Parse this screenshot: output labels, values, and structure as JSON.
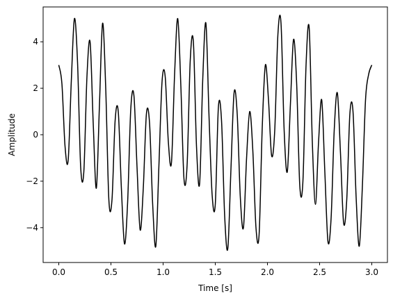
{
  "chart_data": {
    "type": "line",
    "title": "",
    "xlabel": "Time [s]",
    "ylabel": "Amplitude",
    "xlim": [
      -0.15,
      3.15
    ],
    "ylim": [
      -5.5,
      5.5
    ],
    "xticks": [
      {
        "value": 0.0,
        "label": "0.0"
      },
      {
        "value": 0.5,
        "label": "0.5"
      },
      {
        "value": 1.0,
        "label": "1.0"
      },
      {
        "value": 1.5,
        "label": "1.5"
      },
      {
        "value": 2.0,
        "label": "2.0"
      },
      {
        "value": 2.5,
        "label": "2.5"
      },
      {
        "value": 3.0,
        "label": "3.0"
      }
    ],
    "yticks": [
      {
        "value": -4,
        "label": "−4"
      },
      {
        "value": -2,
        "label": "−2"
      },
      {
        "value": 0,
        "label": "0"
      },
      {
        "value": 2,
        "label": "2"
      },
      {
        "value": 4,
        "label": "4"
      }
    ],
    "grid": false,
    "line_color": "#000000",
    "series": [
      {
        "x": [
          0.0,
          0.03,
          0.06,
          0.09,
          0.12,
          0.15,
          0.18,
          0.21,
          0.24,
          0.27,
          0.3,
          0.33,
          0.36,
          0.39,
          0.42,
          0.45,
          0.48,
          0.51,
          0.54,
          0.57,
          0.6,
          0.63,
          0.66,
          0.69,
          0.72,
          0.75,
          0.78,
          0.81,
          0.84,
          0.87,
          0.9,
          0.93,
          0.96,
          0.99,
          1.02,
          1.05,
          1.08,
          1.11,
          1.14,
          1.17,
          1.2,
          1.23,
          1.26,
          1.29,
          1.32,
          1.35,
          1.38,
          1.41,
          1.44,
          1.47,
          1.5,
          1.53,
          1.56,
          1.59,
          1.62,
          1.65,
          1.68,
          1.71,
          1.74,
          1.77,
          1.8,
          1.83,
          1.86,
          1.89,
          1.92,
          1.95,
          1.98,
          2.01,
          2.04,
          2.07,
          2.1,
          2.13,
          2.16,
          2.19,
          2.22,
          2.25,
          2.28,
          2.31,
          2.34,
          2.37,
          2.4,
          2.43,
          2.46,
          2.49,
          2.52,
          2.55,
          2.58,
          2.61,
          2.64,
          2.67,
          2.7,
          2.73,
          2.76,
          2.79,
          2.82,
          2.85,
          2.88,
          2.91,
          2.94,
          2.97,
          3.0
        ],
        "y": [
          3.0,
          2.2,
          -0.5,
          -1.1,
          2.3,
          5.0,
          3.1,
          -1.4,
          -1.6,
          2.5,
          4.0,
          0.5,
          -2.3,
          1.3,
          4.8,
          2.0,
          -2.8,
          -2.8,
          0.6,
          1.0,
          -2.3,
          -4.7,
          -2.9,
          1.1,
          1.7,
          -1.4,
          -4.1,
          -2.3,
          0.9,
          0.5,
          -3.0,
          -4.8,
          -1.3,
          2.3,
          2.5,
          -0.3,
          -1.2,
          2.6,
          5.0,
          2.1,
          -1.9,
          -1.3,
          3.2,
          4.0,
          -0.5,
          -2.1,
          2.4,
          4.8,
          0.8,
          -2.6,
          -3.0,
          1.2,
          0.6,
          -3.5,
          -4.9,
          -1.5,
          1.8,
          0.9,
          -2.7,
          -4.0,
          -1.0,
          1.0,
          -0.7,
          -4.0,
          -4.3,
          0.3,
          3.0,
          1.5,
          -0.9,
          0.2,
          4.3,
          4.8,
          0.2,
          -1.6,
          1.3,
          4.1,
          2.2,
          -2.2,
          -2.0,
          3.0,
          4.6,
          -0.3,
          -3.0,
          -0.3,
          1.5,
          -1.6,
          -4.6,
          -3.6,
          0.2,
          1.8,
          -0.8,
          -3.8,
          -2.8,
          0.9,
          1.0,
          -2.7,
          -4.8,
          -2.2,
          1.5,
          2.6,
          3.0
        ]
      }
    ]
  }
}
